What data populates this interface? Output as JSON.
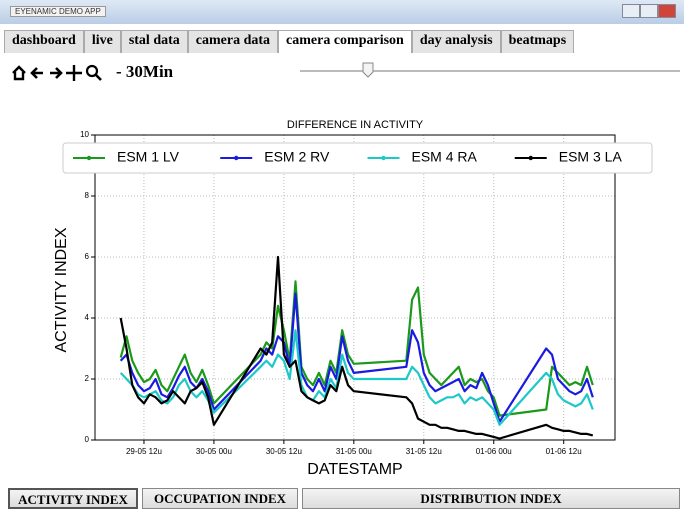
{
  "window_title": "EYENAMIC DEMO APP",
  "tabs": [
    "dashboard",
    "live",
    "stal data",
    "camera data",
    "camera comparison",
    "day analysis",
    "beatmaps"
  ],
  "toolbar": {
    "label": "- 30Min"
  },
  "bottom_buttons": [
    "ACTIVITY INDEX",
    "OCCUPATION INDEX",
    "DISTRIBUTION INDEX"
  ],
  "chart_data": {
    "type": "line",
    "title": "DIFFERENCE IN ACTIVITY",
    "xlabel": "DATESTAMP",
    "ylabel": "ACTIVITY INDEX",
    "x": [
      8,
      9,
      10,
      11,
      12,
      13,
      14,
      15,
      16,
      17,
      18,
      19,
      20,
      21,
      22,
      23,
      24,
      32,
      33,
      34,
      35,
      36,
      37,
      38,
      39,
      40,
      41,
      42,
      43,
      44,
      45,
      46,
      47,
      48,
      57,
      58,
      59,
      60,
      61,
      62,
      63,
      64,
      65,
      66,
      67,
      68,
      69,
      70,
      71,
      72,
      73,
      81,
      82,
      83,
      84,
      85,
      86,
      87,
      88,
      89
    ],
    "series": [
      {
        "name": "ESM 1 LV",
        "color": "#1a9a1a",
        "values": [
          2.7,
          3.4,
          2.6,
          2.2,
          1.9,
          2.0,
          2.3,
          1.8,
          1.6,
          2.0,
          2.4,
          2.8,
          2.2,
          1.9,
          2.3,
          1.8,
          1.2,
          2.8,
          3.2,
          3.0,
          4.4,
          3.6,
          2.6,
          5.2,
          2.4,
          2.0,
          1.8,
          2.2,
          1.8,
          2.6,
          2.2,
          3.6,
          2.8,
          2.5,
          2.6,
          4.6,
          5.0,
          2.8,
          2.2,
          2.0,
          1.8,
          2.0,
          2.2,
          2.4,
          1.8,
          2.0,
          1.9,
          2.0,
          1.6,
          1.4,
          0.8,
          1.0,
          2.4,
          2.2,
          2.0,
          1.8,
          1.9,
          1.8,
          2.4,
          1.8
        ]
      },
      {
        "name": "ESM 2 RV",
        "color": "#1a1ae0",
        "values": [
          2.6,
          2.8,
          2.2,
          1.8,
          1.6,
          1.7,
          2.0,
          1.5,
          1.4,
          1.7,
          2.1,
          2.4,
          1.9,
          1.7,
          2.0,
          1.6,
          1.0,
          2.6,
          3.0,
          2.8,
          3.4,
          3.2,
          2.4,
          4.8,
          2.2,
          1.8,
          1.6,
          2.0,
          1.6,
          2.4,
          2.0,
          3.4,
          2.6,
          2.2,
          2.4,
          3.6,
          3.2,
          2.2,
          1.8,
          1.6,
          1.7,
          1.8,
          1.9,
          2.0,
          1.6,
          1.8,
          1.7,
          2.2,
          1.8,
          1.2,
          0.6,
          3.0,
          2.8,
          2.0,
          1.8,
          1.6,
          1.5,
          1.6,
          2.0,
          1.4
        ]
      },
      {
        "name": "ESM 4 RA",
        "color": "#1ec8c8",
        "values": [
          2.2,
          2.0,
          1.8,
          1.5,
          1.4,
          1.5,
          1.6,
          1.3,
          1.2,
          1.4,
          1.8,
          2.0,
          1.6,
          1.4,
          1.6,
          1.3,
          0.9,
          2.4,
          2.6,
          2.4,
          2.8,
          2.6,
          2.0,
          3.6,
          1.8,
          1.4,
          1.3,
          1.6,
          1.4,
          2.0,
          1.7,
          2.8,
          2.2,
          2.0,
          2.0,
          2.4,
          2.2,
          1.8,
          1.4,
          1.2,
          1.3,
          1.4,
          1.4,
          1.5,
          1.2,
          1.4,
          1.3,
          1.4,
          1.2,
          1.0,
          0.5,
          2.2,
          2.0,
          1.5,
          1.3,
          1.2,
          1.1,
          1.2,
          1.5,
          1.0
        ]
      },
      {
        "name": "ESM 3 LA",
        "color": "#000000",
        "values": [
          4.0,
          3.0,
          1.8,
          1.4,
          1.2,
          1.5,
          1.4,
          1.2,
          1.3,
          1.6,
          1.4,
          1.2,
          1.6,
          1.7,
          1.9,
          1.4,
          0.5,
          3.0,
          2.8,
          3.2,
          6.0,
          2.8,
          2.4,
          2.6,
          1.6,
          1.4,
          1.3,
          1.2,
          1.3,
          1.8,
          1.6,
          2.4,
          1.8,
          1.6,
          1.4,
          1.2,
          0.7,
          0.6,
          0.5,
          0.5,
          0.4,
          0.4,
          0.35,
          0.3,
          0.3,
          0.25,
          0.2,
          0.2,
          0.15,
          0.1,
          0.05,
          0.5,
          0.4,
          0.35,
          0.3,
          0.3,
          0.25,
          0.2,
          0.2,
          0.15
        ]
      }
    ],
    "xlim": [
      3.6,
      92.8
    ],
    "xticks": [
      {
        "value": 12,
        "label": "29-05 12u"
      },
      {
        "value": 24,
        "label": "30-05 00u"
      },
      {
        "value": 36,
        "label": "30-05 12u"
      },
      {
        "value": 48,
        "label": "31-05 00u"
      },
      {
        "value": 60,
        "label": "31-05 12u"
      },
      {
        "value": 72,
        "label": "01-06 00u"
      },
      {
        "value": 84,
        "label": "01-06 12u"
      }
    ],
    "ylim": [
      0,
      10
    ],
    "yticks": [
      0,
      2,
      4,
      6,
      8,
      10
    ],
    "grid": true,
    "legend": "upper center"
  }
}
